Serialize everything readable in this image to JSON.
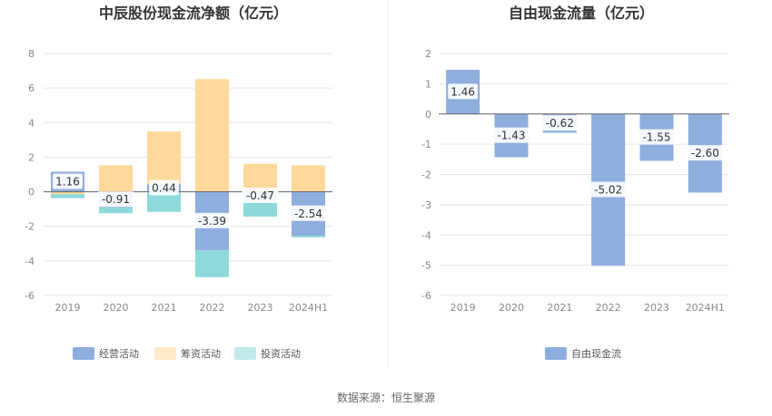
{
  "source_label": "数据来源：恒生聚源",
  "chart_data": [
    {
      "type": "bar",
      "stacked": true,
      "title": "中辰股份现金流净额（亿元）",
      "categories": [
        "2019",
        "2020",
        "2021",
        "2022",
        "2023",
        "2024H1"
      ],
      "yticks": [
        "8",
        "6",
        "4",
        "2",
        "0",
        "-2",
        "-4",
        "-6"
      ],
      "ylim": [
        -6,
        8
      ],
      "grid": true,
      "legend_position": "bottom",
      "series": [
        {
          "name": "经营活动",
          "color": "#8eaedd",
          "values": [
            1.16,
            -0.91,
            0.44,
            -3.39,
            -0.47,
            -2.54
          ],
          "labels": [
            "1.16",
            "-0.91",
            "0.44",
            "-3.39",
            "-0.47",
            "-2.54"
          ]
        },
        {
          "name": "筹资活动",
          "color": "#fed99b",
          "values": [
            -0.14,
            1.53,
            3.04,
            6.52,
            1.62,
            1.53
          ]
        },
        {
          "name": "投资活动",
          "color": "#8ed9d9",
          "values": [
            -0.23,
            -0.33,
            -1.16,
            -1.55,
            -0.97,
            -0.1
          ]
        }
      ]
    },
    {
      "type": "bar",
      "title": "自由现金流量（亿元）",
      "categories": [
        "2019",
        "2020",
        "2021",
        "2022",
        "2023",
        "2024H1"
      ],
      "yticks": [
        "2",
        "1",
        "0",
        "-1",
        "-2",
        "-3",
        "-4",
        "-5",
        "-6"
      ],
      "ylim": [
        -6,
        2
      ],
      "grid": true,
      "legend_position": "bottom",
      "series": [
        {
          "name": "自由现金流",
          "color": "#8eaedd",
          "values": [
            1.46,
            -1.43,
            -0.62,
            -5.02,
            -1.55,
            -2.6
          ],
          "labels": [
            "1.46",
            "-1.43",
            "-0.62",
            "-5.02",
            "-1.55",
            "-2.60"
          ]
        }
      ]
    }
  ]
}
